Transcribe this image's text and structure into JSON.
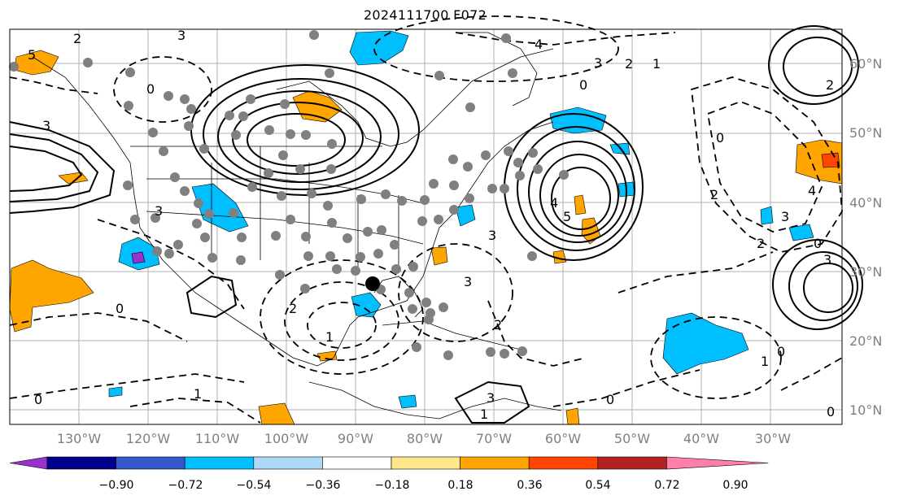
{
  "title": "2024111700 F072",
  "lon_labels": [
    "130°W",
    "120°W",
    "110°W",
    "100°W",
    "90°W",
    "80°W",
    "70°W",
    "60°W",
    "50°W",
    "40°W",
    "30°W"
  ],
  "lat_labels": [
    "60°N",
    "50°N",
    "40°N",
    "30°N",
    "20°N",
    "10°N"
  ],
  "colorbar": {
    "colors": [
      "#9932cc",
      "#00008b",
      "#3357cc",
      "#00bfff",
      "#add8f8",
      "#ffffff",
      "#ffe78a",
      "#ffa500",
      "#ff4500",
      "#b22222",
      "#ff7fa8"
    ],
    "labels": [
      "−0.90",
      "−0.72",
      "−0.54",
      "−0.36",
      "−0.18",
      "0.18",
      "0.36",
      "0.54",
      "0.72",
      "0.90"
    ]
  },
  "contour_labels": [
    "2",
    "3",
    "0",
    "3",
    "5",
    "4",
    "3",
    "2",
    "1",
    "0",
    "2",
    "0",
    "4",
    "5",
    "3",
    "2",
    "0",
    "3",
    "4",
    "2",
    "0",
    "3",
    "1",
    "3",
    "0",
    "1",
    "2",
    "1",
    "0",
    "3",
    "2",
    "0",
    "1",
    "3",
    "0"
  ]
}
